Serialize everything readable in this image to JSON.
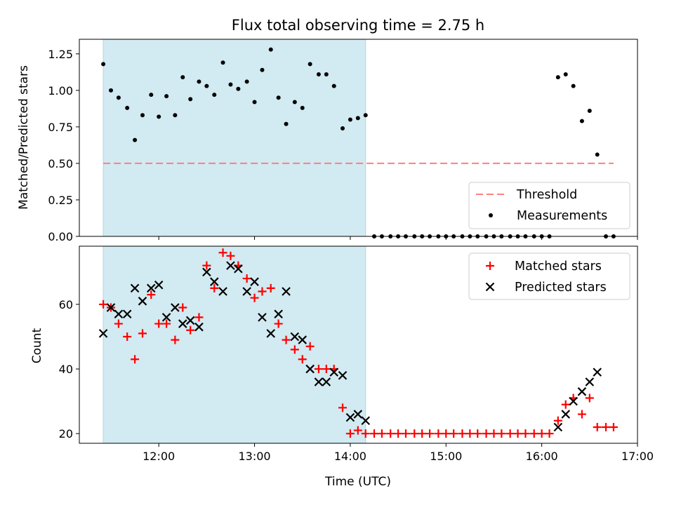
{
  "chart_data": {
    "title": "Flux total observing time = 2.75 h",
    "xlabel": "Time (UTC)",
    "x_ticks": [
      12,
      13,
      14,
      15,
      16,
      17
    ],
    "x_tick_labels": [
      "12:00",
      "13:00",
      "14:00",
      "15:00",
      "16:00",
      "17:00"
    ],
    "xlim": [
      11.17,
      17.0
    ],
    "shade_range": [
      11.42,
      14.16
    ],
    "colors": {
      "shade": "#add8e6",
      "threshold": "#ff7f7f",
      "matched": "#ff0000",
      "predicted": "#000000",
      "measurement": "#000000"
    },
    "top": {
      "type": "scatter",
      "ylabel": "Matched/Predicted stars",
      "ylim": [
        0,
        1.35
      ],
      "y_ticks": [
        0,
        0.25,
        0.5,
        0.75,
        1.0,
        1.25
      ],
      "y_tick_labels": [
        "0.00",
        "0.25",
        "0.50",
        "0.75",
        "1.00",
        "1.25"
      ],
      "threshold": {
        "name": "Threshold",
        "y": 0.5,
        "x_range": [
          11.42,
          16.75
        ]
      },
      "measurements_name": "Measurements",
      "x": [
        11.42,
        11.5,
        11.58,
        11.67,
        11.75,
        11.83,
        11.92,
        12.0,
        12.08,
        12.17,
        12.25,
        12.33,
        12.42,
        12.5,
        12.58,
        12.67,
        12.75,
        12.83,
        12.92,
        13.0,
        13.08,
        13.17,
        13.25,
        13.33,
        13.42,
        13.5,
        13.58,
        13.67,
        13.75,
        13.83,
        13.92,
        14.0,
        14.08,
        14.16,
        14.25,
        14.33,
        14.42,
        14.5,
        14.58,
        14.67,
        14.75,
        14.83,
        14.92,
        15.0,
        15.08,
        15.17,
        15.25,
        15.33,
        15.42,
        15.5,
        15.58,
        15.67,
        15.75,
        15.83,
        15.92,
        16.0,
        16.08,
        16.17,
        16.25,
        16.33,
        16.42,
        16.5,
        16.58,
        16.67,
        16.75
      ],
      "y": [
        1.18,
        1.0,
        0.95,
        0.88,
        0.66,
        0.83,
        0.97,
        0.82,
        0.96,
        0.83,
        1.09,
        0.94,
        1.06,
        1.03,
        0.97,
        1.19,
        1.04,
        1.01,
        1.06,
        0.92,
        1.14,
        1.28,
        0.95,
        0.77,
        0.92,
        0.88,
        1.18,
        1.11,
        1.11,
        1.03,
        0.74,
        0.8,
        0.81,
        0.83,
        0,
        0,
        0,
        0,
        0,
        0,
        0,
        0,
        0,
        0,
        0,
        0,
        0,
        0,
        0,
        0,
        0,
        0,
        0,
        0,
        0,
        0,
        0,
        1.09,
        1.11,
        1.03,
        0.79,
        0.86,
        0.56,
        0,
        0
      ]
    },
    "bottom": {
      "type": "scatter",
      "ylabel": "Count",
      "ylim": [
        17,
        78
      ],
      "y_ticks": [
        20,
        40,
        60
      ],
      "y_tick_labels": [
        "20",
        "40",
        "60"
      ],
      "matched": {
        "name": "Matched stars",
        "x": [
          11.42,
          11.5,
          11.58,
          11.67,
          11.75,
          11.83,
          11.92,
          12.0,
          12.08,
          12.17,
          12.25,
          12.33,
          12.42,
          12.5,
          12.58,
          12.67,
          12.75,
          12.83,
          12.92,
          13.0,
          13.08,
          13.17,
          13.25,
          13.33,
          13.42,
          13.5,
          13.58,
          13.67,
          13.75,
          13.83,
          13.92,
          14.0,
          14.08,
          14.16,
          14.25,
          14.33,
          14.42,
          14.5,
          14.58,
          14.67,
          14.75,
          14.83,
          14.92,
          15.0,
          15.08,
          15.17,
          15.25,
          15.33,
          15.42,
          15.5,
          15.58,
          15.67,
          15.75,
          15.83,
          15.92,
          16.0,
          16.08,
          16.17,
          16.25,
          16.33,
          16.42,
          16.5,
          16.58,
          16.67,
          16.75
        ],
        "y": [
          60,
          59,
          54,
          50,
          43,
          51,
          63,
          54,
          54,
          49,
          59,
          52,
          56,
          72,
          65,
          76,
          75,
          72,
          68,
          62,
          64,
          65,
          54,
          49,
          46,
          43,
          47,
          40,
          40,
          40,
          28,
          20,
          21,
          20,
          20,
          20,
          20,
          20,
          20,
          20,
          20,
          20,
          20,
          20,
          20,
          20,
          20,
          20,
          20,
          20,
          20,
          20,
          20,
          20,
          20,
          20,
          20,
          24,
          29,
          31,
          26,
          31,
          22,
          22,
          22
        ]
      },
      "predicted": {
        "name": "Predicted stars",
        "x": [
          11.42,
          11.5,
          11.58,
          11.67,
          11.75,
          11.83,
          11.92,
          12.0,
          12.08,
          12.17,
          12.25,
          12.33,
          12.42,
          12.5,
          12.58,
          12.67,
          12.75,
          12.83,
          12.92,
          13.0,
          13.08,
          13.17,
          13.25,
          13.33,
          13.42,
          13.5,
          13.58,
          13.67,
          13.75,
          13.83,
          13.92,
          14.0,
          14.08,
          14.16,
          16.17,
          16.25,
          16.33,
          16.42,
          16.5,
          16.58
        ],
        "y": [
          51,
          59,
          57,
          57,
          65,
          61,
          65,
          66,
          56,
          59,
          54,
          55,
          53,
          70,
          67,
          64,
          72,
          71,
          64,
          67,
          56,
          51,
          57,
          64,
          50,
          49,
          40,
          36,
          36,
          39,
          38,
          25,
          26,
          24,
          22,
          26,
          30,
          33,
          36,
          39
        ]
      }
    }
  }
}
